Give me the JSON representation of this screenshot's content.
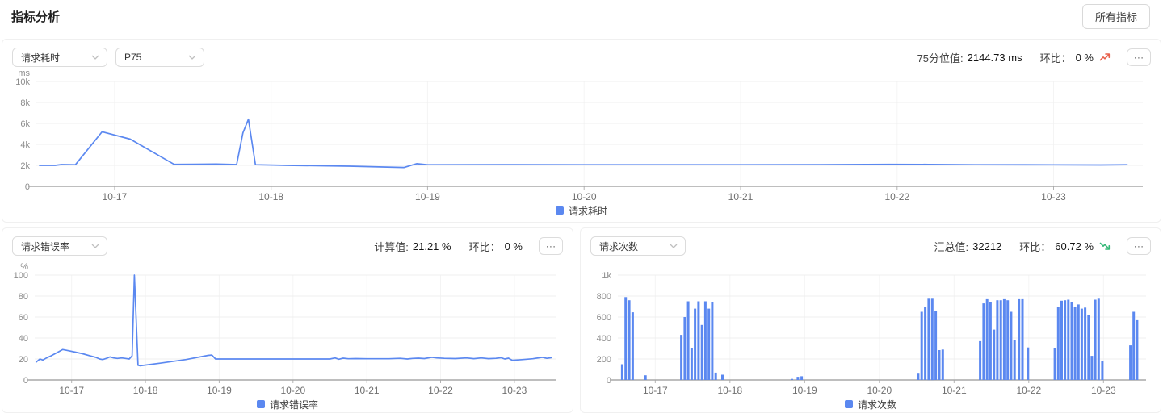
{
  "header": {
    "title": "指标分析",
    "all_metrics_button": "所有指标"
  },
  "icons": {
    "more": "⋯"
  },
  "colors": {
    "series_blue": "#5b88f0",
    "trend_up_red": "#e8604c",
    "trend_down_green": "#35b877",
    "card_border": "#f0f0f0"
  },
  "charts": [
    {
      "selects": [
        {
          "value": "请求耗时"
        },
        {
          "value": "P75"
        }
      ],
      "stats": [
        {
          "label": "75分位值:",
          "value": "2144.73 ms"
        },
        {
          "label": "环比：",
          "value": "0 %",
          "trend": "up"
        }
      ],
      "legend": "请求耗时"
    },
    {
      "selects": [
        {
          "value": "请求错误率"
        }
      ],
      "stats": [
        {
          "label": "计算值:",
          "value": "21.21 %"
        },
        {
          "label": "环比：",
          "value": "0 %"
        }
      ],
      "legend": "请求错误率"
    },
    {
      "selects": [
        {
          "value": "请求次数"
        }
      ],
      "stats": [
        {
          "label": "汇总值:",
          "value": "32212"
        },
        {
          "label": "环比：",
          "value": "60.72 %",
          "trend": "down"
        }
      ],
      "legend": "请求次数"
    }
  ],
  "chart_data": [
    {
      "type": "line",
      "title": "请求耗时 P75",
      "unit": "ms",
      "color": "#5b88f0",
      "xlim": [
        16.5,
        23.57
      ],
      "ylim": [
        0,
        10000
      ],
      "yticks": [
        {
          "v": 0,
          "label": "0"
        },
        {
          "v": 2000,
          "label": "2k"
        },
        {
          "v": 4000,
          "label": "4k"
        },
        {
          "v": 6000,
          "label": "6k"
        },
        {
          "v": 8000,
          "label": "8k"
        },
        {
          "v": 10000,
          "label": "10k"
        }
      ],
      "xticks": [
        {
          "v": 17,
          "label": "10-17"
        },
        {
          "v": 18,
          "label": "10-18"
        },
        {
          "v": 19,
          "label": "10-19"
        },
        {
          "v": 20,
          "label": "10-20"
        },
        {
          "v": 21,
          "label": "10-21"
        },
        {
          "v": 22,
          "label": "10-22"
        },
        {
          "v": 23,
          "label": "10-23"
        }
      ],
      "points": [
        [
          16.52,
          2000
        ],
        [
          16.62,
          2000
        ],
        [
          16.66,
          2080
        ],
        [
          16.75,
          2060
        ],
        [
          16.92,
          5200
        ],
        [
          17.1,
          4500
        ],
        [
          17.38,
          2100
        ],
        [
          17.5,
          2110
        ],
        [
          17.65,
          2120
        ],
        [
          17.78,
          2080
        ],
        [
          17.82,
          5100
        ],
        [
          17.855,
          6400
        ],
        [
          17.9,
          2060
        ],
        [
          18.1,
          2000
        ],
        [
          18.5,
          1920
        ],
        [
          18.85,
          1800
        ],
        [
          18.93,
          2160
        ],
        [
          19.0,
          2060
        ],
        [
          19.5,
          2070
        ],
        [
          20.0,
          2060
        ],
        [
          20.5,
          2060
        ],
        [
          21.0,
          2060
        ],
        [
          21.5,
          2070
        ],
        [
          21.95,
          2100
        ],
        [
          22.2,
          2090
        ],
        [
          22.5,
          2060
        ],
        [
          23.0,
          2050
        ],
        [
          23.3,
          2040
        ],
        [
          23.47,
          2060
        ]
      ]
    },
    {
      "type": "line",
      "title": "请求错误率",
      "unit": "%",
      "color": "#5b88f0",
      "xlim": [
        16.5,
        23.57
      ],
      "ylim": [
        0,
        100
      ],
      "yticks": [
        {
          "v": 0,
          "label": "0"
        },
        {
          "v": 20,
          "label": "20"
        },
        {
          "v": 40,
          "label": "40"
        },
        {
          "v": 60,
          "label": "60"
        },
        {
          "v": 80,
          "label": "80"
        },
        {
          "v": 100,
          "label": "100"
        }
      ],
      "xticks": [
        {
          "v": 17,
          "label": "10-17"
        },
        {
          "v": 18,
          "label": "10-18"
        },
        {
          "v": 19,
          "label": "10-19"
        },
        {
          "v": 20,
          "label": "10-20"
        },
        {
          "v": 21,
          "label": "10-21"
        },
        {
          "v": 22,
          "label": "10-22"
        },
        {
          "v": 23,
          "label": "10-23"
        }
      ],
      "points": [
        [
          16.52,
          17
        ],
        [
          16.57,
          20
        ],
        [
          16.61,
          19
        ],
        [
          16.66,
          21
        ],
        [
          16.72,
          23
        ],
        [
          16.8,
          26
        ],
        [
          16.88,
          29
        ],
        [
          16.95,
          28
        ],
        [
          17.05,
          26.5
        ],
        [
          17.15,
          25
        ],
        [
          17.25,
          23
        ],
        [
          17.33,
          21.5
        ],
        [
          17.38,
          20
        ],
        [
          17.42,
          19.5
        ],
        [
          17.47,
          20.5
        ],
        [
          17.52,
          22
        ],
        [
          17.57,
          21
        ],
        [
          17.62,
          20.5
        ],
        [
          17.68,
          21
        ],
        [
          17.73,
          20.5
        ],
        [
          17.78,
          20
        ],
        [
          17.82,
          23
        ],
        [
          17.85,
          100
        ],
        [
          17.9,
          14
        ],
        [
          17.93,
          13.5
        ],
        [
          18.2,
          16
        ],
        [
          18.55,
          19.5
        ],
        [
          18.85,
          23.5
        ],
        [
          18.9,
          23.8
        ],
        [
          18.95,
          20
        ],
        [
          19.2,
          20
        ],
        [
          19.6,
          20
        ],
        [
          20.0,
          20
        ],
        [
          20.5,
          20
        ],
        [
          20.57,
          21
        ],
        [
          20.62,
          19.8
        ],
        [
          20.68,
          20.8
        ],
        [
          20.75,
          20.2
        ],
        [
          20.85,
          20.4
        ],
        [
          21.0,
          20.2
        ],
        [
          21.3,
          20.2
        ],
        [
          21.45,
          20.6
        ],
        [
          21.55,
          20
        ],
        [
          21.62,
          20.5
        ],
        [
          21.7,
          20.8
        ],
        [
          21.78,
          20.4
        ],
        [
          21.88,
          21.6
        ],
        [
          21.95,
          21
        ],
        [
          22.05,
          20.6
        ],
        [
          22.2,
          20.4
        ],
        [
          22.35,
          21
        ],
        [
          22.45,
          20.3
        ],
        [
          22.55,
          21
        ],
        [
          22.65,
          20.3
        ],
        [
          22.75,
          20.6
        ],
        [
          22.82,
          21.2
        ],
        [
          22.87,
          20
        ],
        [
          22.92,
          20.8
        ],
        [
          22.97,
          18.8
        ],
        [
          23.1,
          19.4
        ],
        [
          23.25,
          20.2
        ],
        [
          23.38,
          21.6
        ],
        [
          23.44,
          20.6
        ],
        [
          23.5,
          21.2
        ]
      ]
    },
    {
      "type": "bar",
      "title": "请求次数",
      "unit": "",
      "color": "#5b88f0",
      "xlim": [
        16.5,
        23.57
      ],
      "ylim": [
        0,
        1000
      ],
      "yticks": [
        {
          "v": 0,
          "label": "0"
        },
        {
          "v": 200,
          "label": "200"
        },
        {
          "v": 400,
          "label": "400"
        },
        {
          "v": 600,
          "label": "600"
        },
        {
          "v": 800,
          "label": "800"
        },
        {
          "v": 1000,
          "label": "1k"
        }
      ],
      "xticks": [
        {
          "v": 17,
          "label": "10-17"
        },
        {
          "v": 18,
          "label": "10-18"
        },
        {
          "v": 19,
          "label": "10-19"
        },
        {
          "v": 20,
          "label": "10-20"
        },
        {
          "v": 21,
          "label": "10-21"
        },
        {
          "v": 22,
          "label": "10-22"
        },
        {
          "v": 23,
          "label": "10-23"
        }
      ],
      "bars": [
        [
          16.558,
          150
        ],
        [
          16.605,
          790
        ],
        [
          16.652,
          760
        ],
        [
          16.699,
          645
        ],
        [
          16.87,
          45
        ],
        [
          17.35,
          430
        ],
        [
          17.396,
          600
        ],
        [
          17.442,
          750
        ],
        [
          17.488,
          305
        ],
        [
          17.534,
          680
        ],
        [
          17.58,
          750
        ],
        [
          17.626,
          525
        ],
        [
          17.672,
          750
        ],
        [
          17.718,
          680
        ],
        [
          17.764,
          745
        ],
        [
          17.81,
          70
        ],
        [
          17.9,
          50
        ],
        [
          18.83,
          10
        ],
        [
          18.91,
          30
        ],
        [
          18.96,
          35
        ],
        [
          20.52,
          60
        ],
        [
          20.567,
          650
        ],
        [
          20.614,
          700
        ],
        [
          20.661,
          775
        ],
        [
          20.708,
          775
        ],
        [
          20.755,
          655
        ],
        [
          20.802,
          285
        ],
        [
          20.849,
          290
        ],
        [
          21.35,
          370
        ],
        [
          21.396,
          730
        ],
        [
          21.442,
          770
        ],
        [
          21.488,
          740
        ],
        [
          21.534,
          480
        ],
        [
          21.58,
          760
        ],
        [
          21.626,
          760
        ],
        [
          21.672,
          770
        ],
        [
          21.718,
          760
        ],
        [
          21.764,
          650
        ],
        [
          21.81,
          380
        ],
        [
          21.87,
          770
        ],
        [
          21.916,
          770
        ],
        [
          21.99,
          310
        ],
        [
          22.35,
          300
        ],
        [
          22.395,
          700
        ],
        [
          22.44,
          755
        ],
        [
          22.485,
          760
        ],
        [
          22.53,
          765
        ],
        [
          22.575,
          740
        ],
        [
          22.62,
          700
        ],
        [
          22.665,
          720
        ],
        [
          22.71,
          680
        ],
        [
          22.755,
          690
        ],
        [
          22.8,
          620
        ],
        [
          22.845,
          230
        ],
        [
          22.89,
          765
        ],
        [
          22.935,
          775
        ],
        [
          22.985,
          180
        ],
        [
          23.36,
          330
        ],
        [
          23.405,
          650
        ],
        [
          23.45,
          570
        ]
      ]
    }
  ]
}
